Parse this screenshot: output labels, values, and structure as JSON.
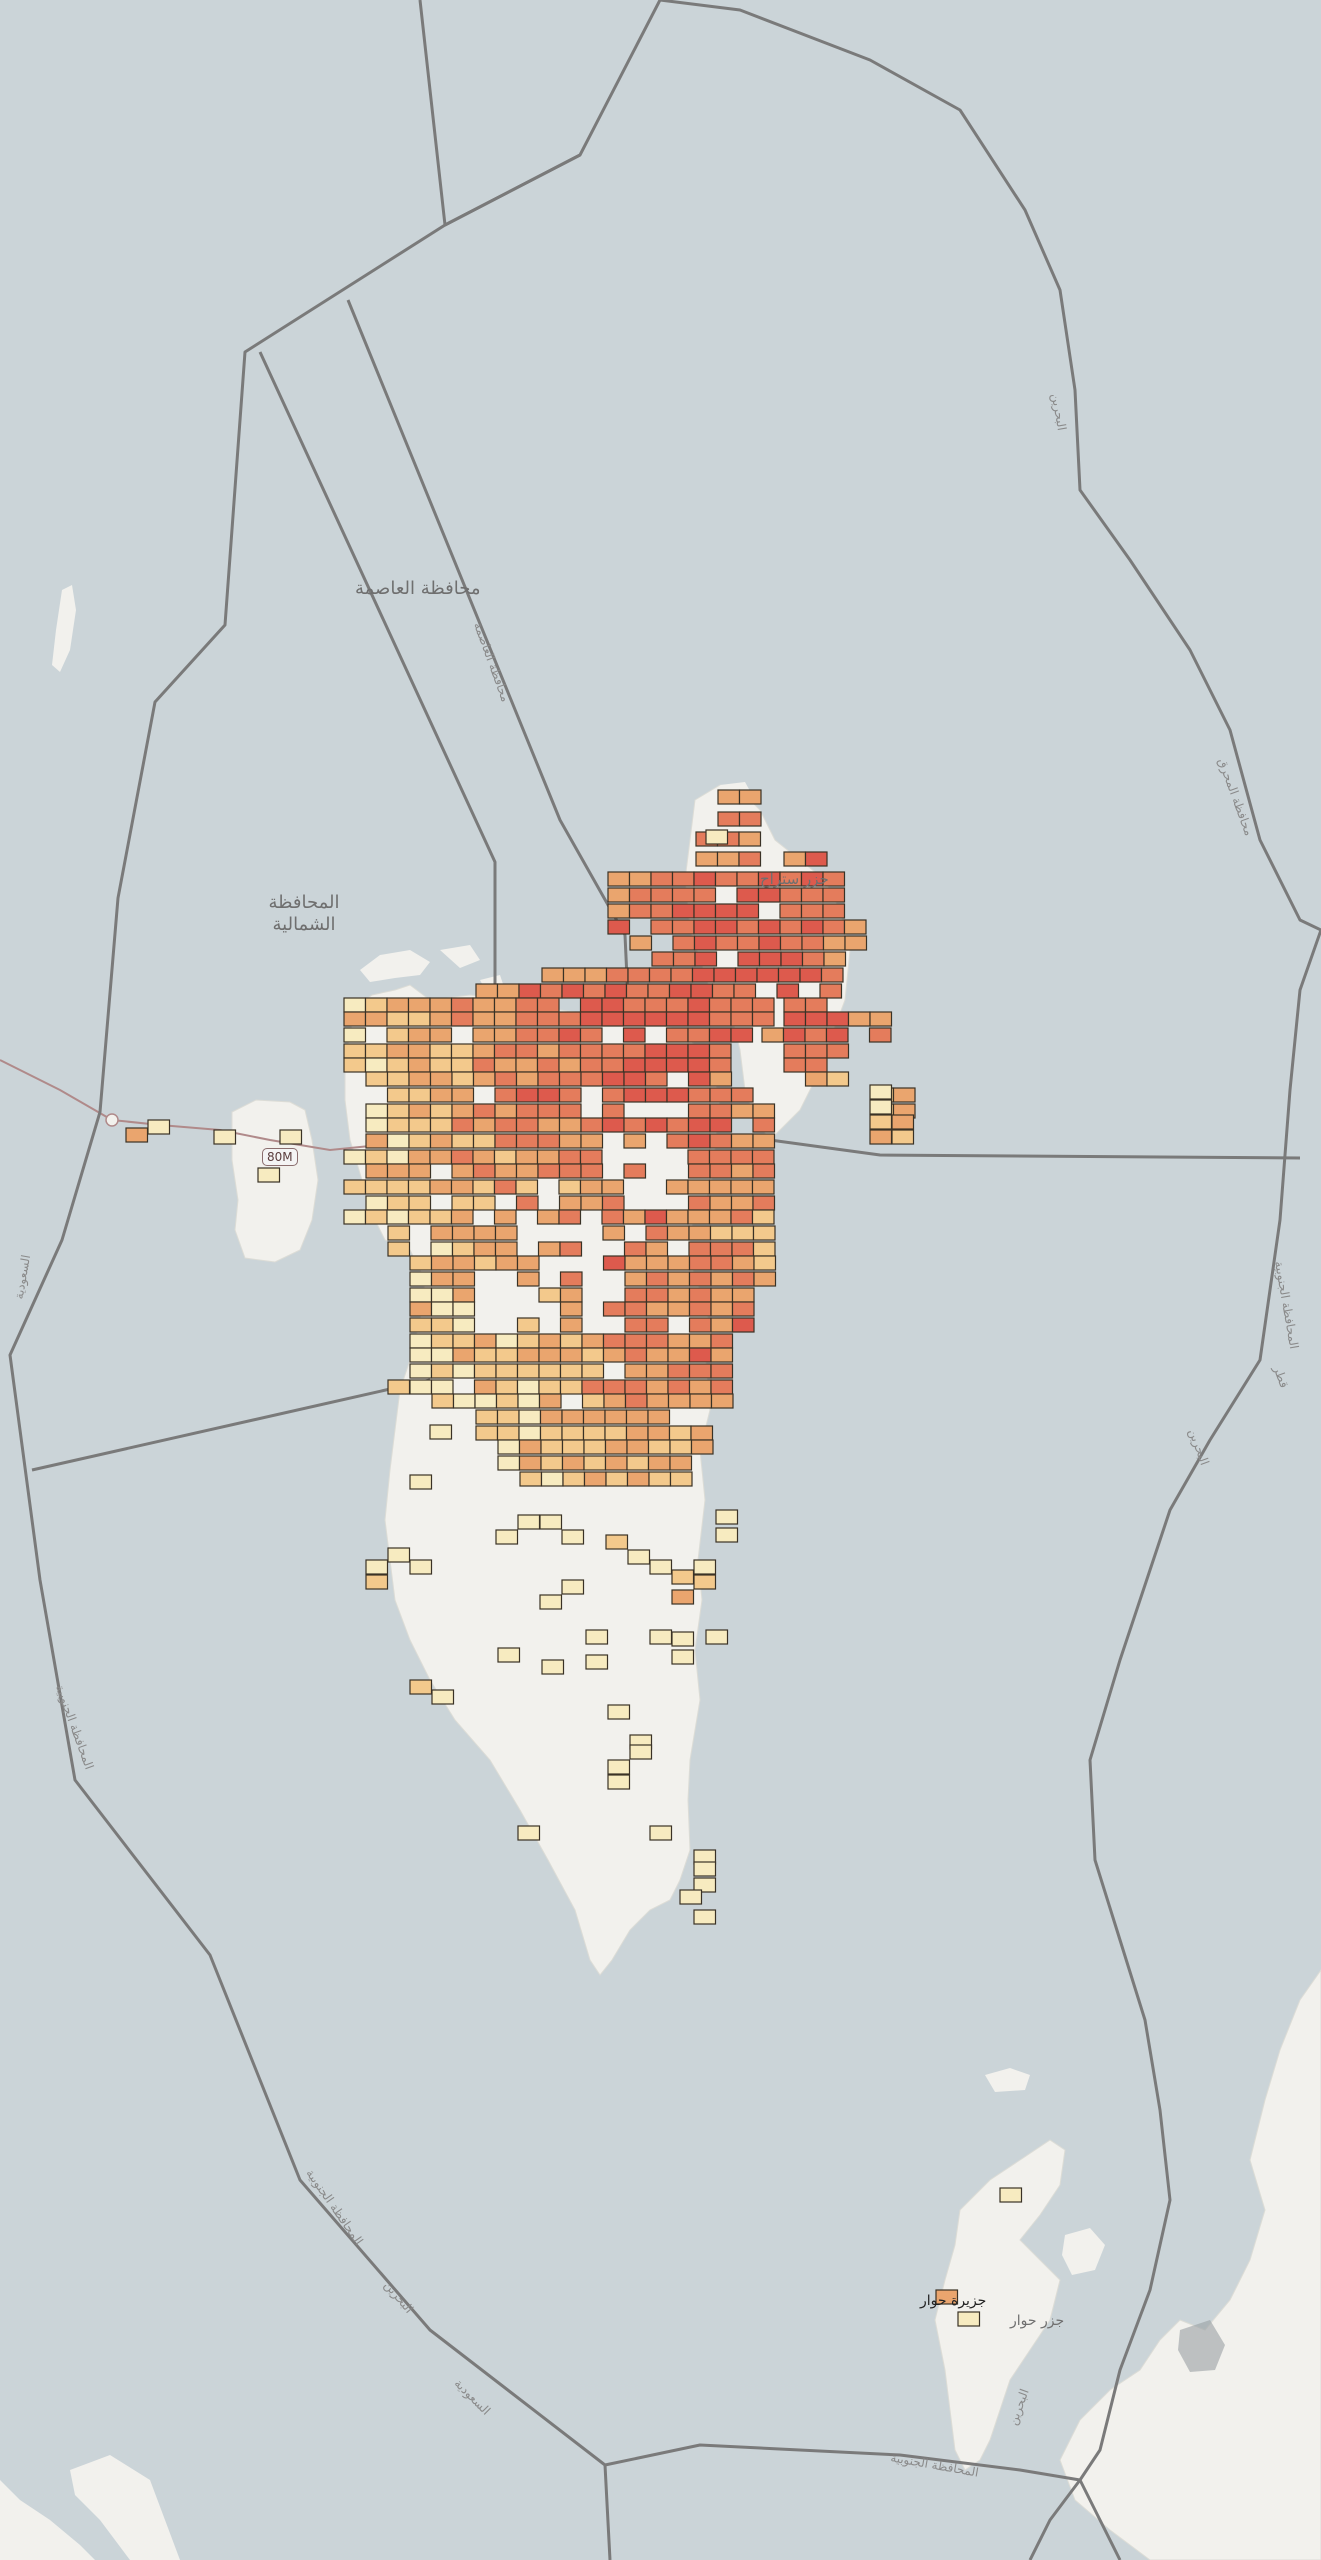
{
  "map": {
    "labels": {
      "capital": "محافظة العاصمة",
      "northern": "المحافظة الشمالية",
      "muharraq_island": "جزر ستراح",
      "hawar": "جزيرة حوار",
      "hawar_islands": "جزر حوار",
      "road_shield": "80M"
    },
    "boundary_labels": {
      "bahrain_right": "البحرين",
      "muharraq_gov": "محافظة المحرق",
      "southern_gov": "المحافظة الجنوبية",
      "saudi_left": "السعودية",
      "bahrain_south": "البحرين",
      "saudi_south": "السعودية",
      "southern_gov_bottom": "المحافظة الجنوبية",
      "qatar": "قطر",
      "capital_boundary": "محافظة العاصمة"
    },
    "colors": {
      "water": "#cbd4d8",
      "land": "#f2f1ed",
      "boundary": "#7a7a7a",
      "low": "#f7ebc0",
      "mid_low": "#f3c98c",
      "mid": "#eaa56e",
      "high": "#e47c5c",
      "very_high": "#dd5a4d"
    },
    "grid": {
      "rows": [
        {
          "y": 0,
          "cells": [
            [
              5,
              1
            ]
          ]
        },
        {
          "y": 1,
          "cells": [
            [
              5,
              1
            ],
            [
              6,
              1
            ]
          ]
        },
        {
          "y": 2,
          "cells": [
            [
              5,
              3
            ],
            [
              6,
              1
            ]
          ]
        },
        {
          "y": 3,
          "cells": [
            [
              0,
              1
            ],
            [
              1,
              1
            ],
            [
              2,
              2
            ],
            [
              3,
              3
            ],
            [
              4,
              3
            ],
            [
              5,
              3
            ],
            [
              6,
              1
            ],
            [
              8,
              3
            ],
            [
              9,
              1
            ]
          ]
        },
        {
          "y": 4,
          "cells": [
            [
              0,
              1
            ],
            [
              1,
              2
            ],
            [
              2,
              3
            ],
            [
              3,
              4
            ],
            [
              4,
              4
            ],
            [
              5,
              3
            ],
            [
              6,
              4
            ],
            [
              7,
              3
            ],
            [
              8,
              2
            ],
            [
              9,
              1
            ]
          ]
        }
      ]
    }
  }
}
